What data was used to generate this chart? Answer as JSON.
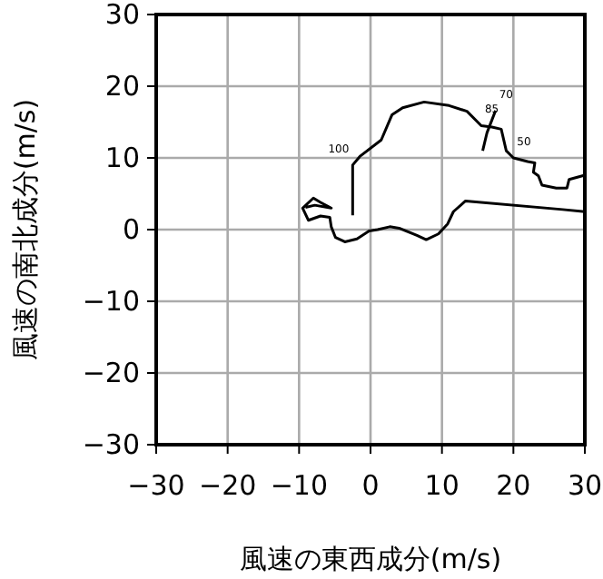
{
  "chart_data": {
    "type": "line",
    "xlabel": "風速の東西成分(m/s)",
    "ylabel": "風速の南北成分(m/s)",
    "xlim": [
      -30,
      30
    ],
    "ylim": [
      -30,
      30
    ],
    "xticks": [
      {
        "value": -30,
        "label": "−30"
      },
      {
        "value": -20,
        "label": "−20"
      },
      {
        "value": -10,
        "label": "−10"
      },
      0,
      10,
      20,
      30
    ],
    "yticks": [
      {
        "value": -30,
        "label": "−30"
      },
      {
        "value": -20,
        "label": "−20"
      },
      {
        "value": -10,
        "label": "−10"
      },
      0,
      10,
      20,
      30
    ],
    "grid": true,
    "marker": "none",
    "line_style": "solid",
    "series": [
      {
        "color": "#000000",
        "x": [
          -2.5,
          -2.5,
          -1.5,
          1.5,
          3,
          4.5,
          7.5,
          11,
          13.5,
          15.5,
          17,
          18.3,
          19,
          20,
          22,
          23,
          22.8,
          23.5,
          24,
          26,
          27.5,
          27.8,
          30
        ],
        "values": [
          2,
          9,
          10.2,
          12.5,
          16,
          17,
          17.8,
          17.3,
          16.5,
          14.5,
          14.3,
          14,
          11,
          10,
          9.5,
          9.3,
          8,
          7.5,
          6.2,
          5.8,
          5.8,
          7,
          7.6
        ]
      },
      {
        "color": "#000000",
        "x": [
          30,
          26.9,
          13.3,
          11.6,
          10.8,
          9.5,
          7.8,
          6.5,
          4,
          2.7,
          1,
          -0.2,
          -1.9,
          -3.6,
          -4.9,
          -5.5,
          -5.7,
          -7,
          -8.7,
          -9.5,
          -8,
          -7,
          -5.5,
          -7.8,
          -9.1
        ],
        "values": [
          2.5,
          2.8,
          4,
          2.5,
          0.8,
          -0.6,
          -1.4,
          -0.8,
          0.2,
          0.4,
          0,
          -0.2,
          -1.3,
          -1.7,
          -1.1,
          0.4,
          1.7,
          1.9,
          1.3,
          3,
          4.4,
          3.8,
          3,
          3.4,
          3.1
        ]
      },
      {
        "color": "#000000",
        "x": [
          15.7,
          16.3,
          17.5
        ],
        "values": [
          11,
          13.5,
          16.6
        ]
      }
    ],
    "annotations": [
      {
        "text": "100",
        "x": -2.5,
        "y": 9
      },
      {
        "text": "85",
        "x": 15.5,
        "y": 14.5
      },
      {
        "text": "70",
        "x": 17.5,
        "y": 16.6
      },
      {
        "text": "50",
        "x": 20,
        "y": 10
      }
    ]
  }
}
